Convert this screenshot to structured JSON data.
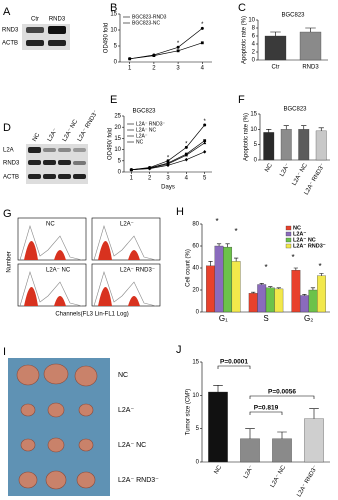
{
  "figure": {
    "blot_a": {
      "panel": "A",
      "lanes": [
        "Ctr",
        "RND3"
      ],
      "rows": [
        "RND3",
        "ACTB"
      ]
    },
    "blot_d": {
      "panel": "D",
      "lanes": [
        "NC",
        "L2A⁻",
        "L2A⁻ NC",
        "L2A⁻ RND3⁻"
      ],
      "rows": [
        "L2A",
        "RND3",
        "ACTB"
      ]
    },
    "flow": {
      "panel": "G",
      "samples": [
        "NC",
        "L2A⁻",
        "L2A⁻ NC",
        "L2A⁻ RND3⁻"
      ],
      "ylabel": "Number",
      "xlabel": "Channels(FL3 Lin-FL1 Log)"
    },
    "tumors": {
      "panel": "I",
      "groups": [
        "NC",
        "L2A⁻",
        "L2A⁻ NC",
        "L2A⁻ RND3⁻"
      ]
    }
  },
  "chart_data": [
    {
      "type": "line",
      "panel": "B",
      "ylabel": "OD490 fold",
      "x": [
        1,
        2,
        3,
        4
      ],
      "xlim": [
        0.6,
        4.4
      ],
      "xticks": [
        1,
        2,
        3,
        4
      ],
      "ylim": [
        0,
        15
      ],
      "yticks": [
        0,
        5,
        10,
        15
      ],
      "series": [
        {
          "name": "BGC823-RND3",
          "color": "#000000",
          "values": [
            1,
            2.2,
            4.6,
            10.5
          ]
        },
        {
          "name": "BGC823-NC",
          "color": "#000000",
          "values": [
            1,
            2,
            3.5,
            6
          ]
        }
      ],
      "annotations": [
        "*",
        "*"
      ]
    },
    {
      "type": "bar",
      "panel": "C",
      "title": "BGC823",
      "ylabel": "Apoptotic rate (%)",
      "categories": [
        "Ctr",
        "RND3"
      ],
      "values": [
        6,
        7
      ],
      "errors": [
        1,
        1
      ],
      "colors": [
        "#3a3a3a",
        "#8a8a8a"
      ],
      "ylim": [
        0,
        10
      ],
      "yticks": [
        0,
        2,
        4,
        6,
        8,
        10
      ]
    },
    {
      "type": "line",
      "panel": "E",
      "title": "BGC823",
      "ylabel": "OD490/ fold",
      "xlabel": "Days",
      "x": [
        1,
        2,
        3,
        4,
        5
      ],
      "xlim": [
        0.6,
        5.4
      ],
      "xticks": [
        1,
        2,
        3,
        4,
        5
      ],
      "ylim": [
        0,
        25
      ],
      "yticks": [
        0,
        5,
        10,
        15,
        20,
        25
      ],
      "series": [
        {
          "name": "L2A⁻ RND3⁻",
          "color": "#000000",
          "values": [
            1,
            2,
            5,
            11,
            21
          ]
        },
        {
          "name": "L2A⁻ NC",
          "color": "#000000",
          "values": [
            1,
            1.8,
            4,
            8,
            14
          ]
        },
        {
          "name": "L2A⁻",
          "color": "#000000",
          "values": [
            1,
            1.7,
            3.6,
            7.5,
            13
          ]
        },
        {
          "name": "NC",
          "color": "#000000",
          "values": [
            1,
            1.5,
            3,
            5.5,
            9
          ]
        }
      ],
      "annotations": [
        "*",
        "*",
        "*"
      ]
    },
    {
      "type": "bar",
      "panel": "F",
      "title": "BGC823",
      "ylabel": "Apoptotic rate (%)",
      "categories": [
        "NC",
        "L2A⁻",
        "L2A⁻ NC",
        "L2A⁻ RND3⁻"
      ],
      "values": [
        9,
        10,
        10,
        9.5
      ],
      "errors": [
        1,
        1.2,
        1.2,
        1
      ],
      "colors": [
        "#2a2a2a",
        "#8c8c8c",
        "#5c5c5c",
        "#c8c8c8"
      ],
      "ylim": [
        0,
        15
      ],
      "yticks": [
        0,
        5,
        10,
        15
      ]
    },
    {
      "type": "grouped-bar",
      "panel": "H",
      "ylabel": "Cell count (%)",
      "categories": [
        "G₁",
        "S",
        "G₂"
      ],
      "ylim": [
        0,
        80
      ],
      "yticks": [
        0,
        20,
        40,
        60,
        80
      ],
      "series": [
        {
          "name": "NC",
          "color": "#e8412c",
          "values": [
            42,
            17,
            38
          ],
          "errors": [
            4,
            1,
            2
          ]
        },
        {
          "name": "L2A⁻",
          "color": "#8a6bbd",
          "values": [
            60,
            25,
            15
          ],
          "errors": [
            2,
            1,
            1
          ]
        },
        {
          "name": "L2A⁻ NC",
          "color": "#6cc24a",
          "values": [
            59,
            22,
            20
          ],
          "errors": [
            3,
            1,
            2
          ]
        },
        {
          "name": "L2A⁻ RND3⁻",
          "color": "#f2e84b",
          "values": [
            46,
            21,
            33
          ],
          "errors": [
            3,
            1,
            2
          ]
        }
      ],
      "annotations": [
        "*",
        "*",
        "*",
        "*",
        "*"
      ]
    },
    {
      "type": "bar",
      "panel": "J",
      "ylabel": "Tumor size (CM³)",
      "categories": [
        "NC",
        "L2A⁻",
        "L2A⁻ NC",
        "L2A⁻ RND3⁻"
      ],
      "values": [
        10.5,
        3.5,
        3.5,
        6.5
      ],
      "errors": [
        1,
        1.5,
        1,
        1.5
      ],
      "colors": [
        "#111111",
        "#8a8a8a",
        "#8a8a8a",
        "#cfcfcf"
      ],
      "ylim": [
        0,
        15
      ],
      "yticks": [
        0,
        5,
        10,
        15
      ],
      "annotations": [
        "P=0.0001",
        "P=0.819",
        "P=0.0056"
      ]
    }
  ]
}
